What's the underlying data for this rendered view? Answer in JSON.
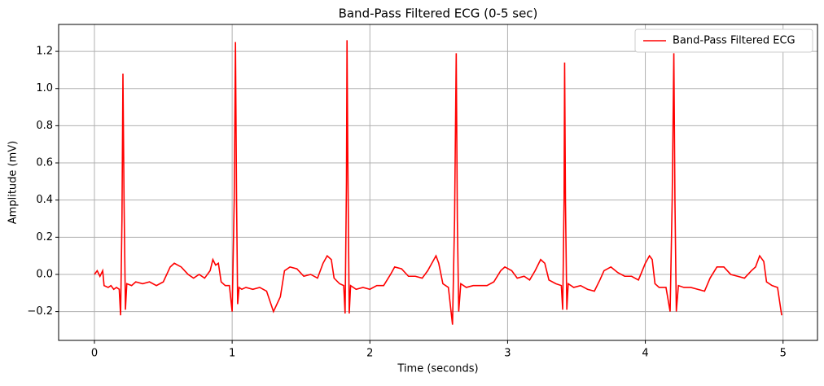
{
  "chart_data": {
    "type": "line",
    "title": "Band-Pass Filtered ECG (0-5 sec)",
    "x_label": "Time (seconds)",
    "y_label": "Amplitude (mV)",
    "x": [
      0,
      0.02,
      0.04,
      0.06,
      0.07,
      0.1,
      0.12,
      0.14,
      0.16,
      0.18,
      0.19,
      0.2,
      0.207,
      0.215,
      0.225,
      0.235,
      0.27,
      0.3,
      0.35,
      0.4,
      0.45,
      0.5,
      0.55,
      0.58,
      0.63,
      0.68,
      0.72,
      0.76,
      0.8,
      0.84,
      0.86,
      0.88,
      0.9,
      0.92,
      0.95,
      0.98,
      1.0,
      1.015,
      1.024,
      1.032,
      1.04,
      1.05,
      1.07,
      1.1,
      1.15,
      1.2,
      1.25,
      1.3,
      1.35,
      1.38,
      1.42,
      1.47,
      1.52,
      1.57,
      1.62,
      1.66,
      1.69,
      1.72,
      1.74,
      1.78,
      1.81,
      1.82,
      1.83,
      1.834,
      1.84,
      1.85,
      1.86,
      1.9,
      1.95,
      2.0,
      2.05,
      2.1,
      2.15,
      2.18,
      2.23,
      2.28,
      2.33,
      2.38,
      2.42,
      2.45,
      2.48,
      2.5,
      2.53,
      2.57,
      2.6,
      2.615,
      2.627,
      2.635,
      2.645,
      2.66,
      2.7,
      2.75,
      2.8,
      2.85,
      2.9,
      2.95,
      2.98,
      3.03,
      3.07,
      3.12,
      3.16,
      3.2,
      3.24,
      3.27,
      3.3,
      3.35,
      3.39,
      3.4,
      3.41,
      3.414,
      3.42,
      3.43,
      3.44,
      3.48,
      3.53,
      3.58,
      3.63,
      3.67,
      3.7,
      3.75,
      3.8,
      3.85,
      3.9,
      3.95,
      4.0,
      4.03,
      4.05,
      4.07,
      4.1,
      4.15,
      4.18,
      4.195,
      4.207,
      4.215,
      4.225,
      4.24,
      4.28,
      4.33,
      4.38,
      4.43,
      4.47,
      4.52,
      4.57,
      4.62,
      4.67,
      4.72,
      4.77,
      4.8,
      4.83,
      4.86,
      4.88,
      4.92,
      4.96,
      4.99
    ],
    "series": [
      {
        "name": "Band-Pass Filtered ECG",
        "color": "#ff0000",
        "values": [
          0,
          0.02,
          -0.01,
          0.02,
          -0.06,
          -0.07,
          -0.06,
          -0.08,
          -0.07,
          -0.08,
          -0.22,
          0.3,
          1.08,
          0.4,
          -0.19,
          -0.05,
          -0.06,
          -0.04,
          -0.05,
          -0.04,
          -0.06,
          -0.04,
          0.04,
          0.06,
          0.04,
          0,
          -0.02,
          0,
          -0.02,
          0.02,
          0.08,
          0.05,
          0.06,
          -0.04,
          -0.06,
          -0.06,
          -0.2,
          0.4,
          1.25,
          0.4,
          -0.16,
          -0.07,
          -0.08,
          -0.07,
          -0.08,
          -0.07,
          -0.09,
          -0.2,
          -0.12,
          0.02,
          0.04,
          0.03,
          -0.01,
          0,
          -0.02,
          0.06,
          0.1,
          0.08,
          -0.02,
          -0.05,
          -0.06,
          -0.21,
          0.5,
          1.26,
          0.6,
          -0.21,
          -0.06,
          -0.08,
          -0.07,
          -0.08,
          -0.06,
          -0.06,
          0,
          0.04,
          0.03,
          -0.01,
          -0.01,
          -0.02,
          0.02,
          0.06,
          0.1,
          0.06,
          -0.05,
          -0.07,
          -0.27,
          0.3,
          1.19,
          0.3,
          -0.2,
          -0.05,
          -0.07,
          -0.06,
          -0.06,
          -0.06,
          -0.04,
          0.02,
          0.04,
          0.02,
          -0.02,
          -0.01,
          -0.03,
          0.02,
          0.08,
          0.06,
          -0.03,
          -0.05,
          -0.06,
          -0.19,
          0.4,
          1.14,
          0.4,
          -0.19,
          -0.05,
          -0.07,
          -0.06,
          -0.08,
          -0.09,
          -0.03,
          0.02,
          0.04,
          0.01,
          -0.01,
          -0.01,
          -0.03,
          0.06,
          0.1,
          0.08,
          -0.05,
          -0.07,
          -0.07,
          -0.2,
          0.4,
          1.19,
          0.4,
          -0.2,
          -0.06,
          -0.07,
          -0.07,
          -0.08,
          -0.09,
          -0.02,
          0.04,
          0.04,
          0,
          -0.01,
          -0.02,
          0.02,
          0.04,
          0.1,
          0.07,
          -0.04,
          -0.06,
          -0.07,
          -0.22
        ]
      }
    ],
    "xlim": [
      -0.26,
      5.25
    ],
    "ylim": [
      -0.355,
      1.345
    ],
    "xticks": [
      0,
      1,
      2,
      3,
      4,
      5
    ],
    "yticks": [
      {
        "value": -0.2,
        "label": "−0.2"
      },
      {
        "value": 0,
        "label": "0.0"
      },
      0.2,
      0.4,
      0.6,
      0.8,
      {
        "value": 1,
        "label": "1.0"
      },
      1.2
    ],
    "grid": true,
    "legend": "upper right"
  }
}
